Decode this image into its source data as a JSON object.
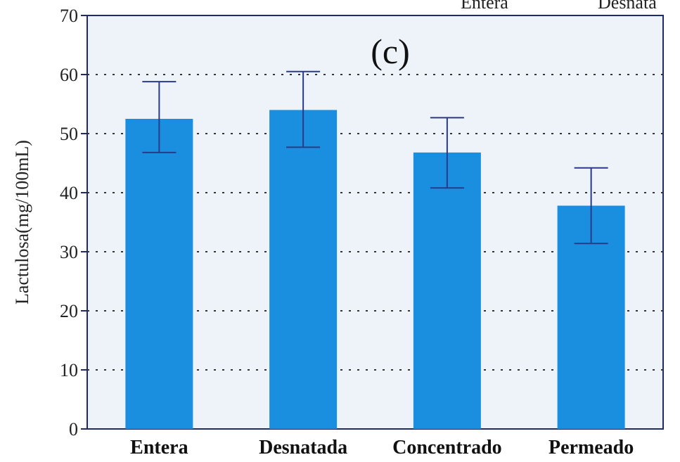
{
  "chart_data": {
    "type": "bar",
    "panel_label": "(c)",
    "categories": [
      "Entera",
      "Desnatada",
      "Concentrado",
      "Permeado"
    ],
    "values": [
      52.5,
      54,
      46.8,
      37.8
    ],
    "error_bars": [
      {
        "low": 46.8,
        "high": 58.8
      },
      {
        "low": 47.7,
        "high": 60.5
      },
      {
        "low": 40.8,
        "high": 52.7
      },
      {
        "low": 31.4,
        "high": 44.2
      }
    ],
    "legend_partial": [
      "Entera",
      "Desnata"
    ],
    "xlabel": "",
    "ylabel": "Lactulosa(mg/100mL)",
    "ylim": [
      0,
      70
    ],
    "yticks": [
      0,
      10,
      20,
      30,
      40,
      50,
      60,
      70
    ],
    "grid": "dotted horizontal",
    "bar_color": "#1a8fe0",
    "error_color": "#2a3a8a",
    "plot_background": "#eef3fa",
    "frame_color": "#1f2a6b"
  }
}
